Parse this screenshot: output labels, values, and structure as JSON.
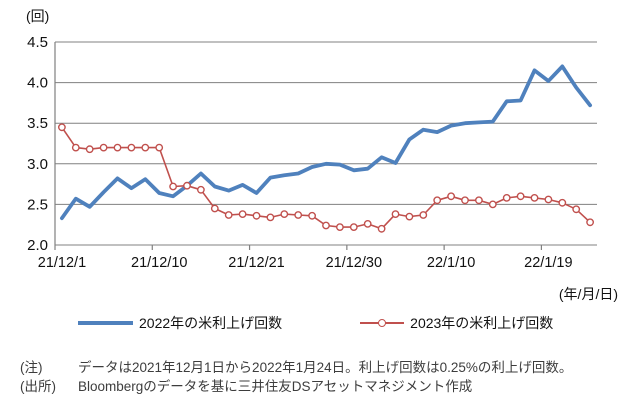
{
  "y_unit_label": "(回)",
  "x_unit_label": "(年/月/日)",
  "legend": {
    "series1_label": "2022年の米利上げ回数",
    "series2_label": "2023年の米利上げ回数"
  },
  "notes": {
    "note_label": "(注)",
    "note_text": "データは2021年12月1日から2022年1月24日。利上げ回数は0.25%の利上げ回数。",
    "source_label": "(出所)",
    "source_text": "Bloombergのデータを基に三井住友DSアセットマネジメント作成"
  },
  "colors": {
    "series1": "#4F81BD",
    "series2": "#C0504D",
    "gridline": "#808080",
    "axis_text": "#111111"
  },
  "chart_data": {
    "type": "line",
    "title": "",
    "ylabel": "(回)",
    "xlabel": "(年/月/日)",
    "ylim": [
      2.0,
      4.5
    ],
    "yticks": [
      4.5,
      4.0,
      3.5,
      3.0,
      2.5,
      2.0
    ],
    "grid": "horizontal",
    "legend_position": "bottom",
    "x": [
      "21/12/1",
      "21/12/2",
      "21/12/3",
      "21/12/6",
      "21/12/7",
      "21/12/8",
      "21/12/9",
      "21/12/10",
      "21/12/13",
      "21/12/14",
      "21/12/15",
      "21/12/16",
      "21/12/17",
      "21/12/20",
      "21/12/21",
      "21/12/22",
      "21/12/23",
      "21/12/24",
      "21/12/27",
      "21/12/28",
      "21/12/29",
      "21/12/30",
      "21/12/31",
      "22/1/3",
      "22/1/4",
      "22/1/5",
      "22/1/6",
      "22/1/7",
      "22/1/10",
      "22/1/11",
      "22/1/12",
      "22/1/13",
      "22/1/14",
      "22/1/17",
      "22/1/18",
      "22/1/19",
      "22/1/20",
      "22/1/21",
      "22/1/24"
    ],
    "x_tick_indices": [
      0,
      7,
      14,
      21,
      28,
      35
    ],
    "x_tick_labels": [
      "21/12/1",
      "21/12/10",
      "21/12/21",
      "21/12/30",
      "22/1/10",
      "22/1/19"
    ],
    "series": [
      {
        "name": "2022年の米利上げ回数",
        "color": "#4F81BD",
        "line_width": 3.8,
        "marker": "none",
        "values": [
          2.33,
          2.57,
          2.47,
          2.65,
          2.82,
          2.7,
          2.81,
          2.64,
          2.6,
          2.73,
          2.88,
          2.72,
          2.67,
          2.74,
          2.64,
          2.83,
          2.86,
          2.88,
          2.96,
          3.0,
          2.99,
          2.92,
          2.94,
          3.08,
          3.01,
          3.3,
          3.42,
          3.39,
          3.47,
          3.5,
          3.51,
          3.52,
          3.77,
          3.78,
          4.15,
          4.02,
          4.2,
          3.94,
          3.72
        ]
      },
      {
        "name": "2023年の米利上げ回数",
        "color": "#C0504D",
        "line_width": 1.6,
        "marker": "circle-open",
        "values": [
          3.45,
          3.2,
          3.18,
          3.2,
          3.2,
          3.2,
          3.2,
          3.2,
          2.72,
          2.73,
          2.68,
          2.45,
          2.37,
          2.38,
          2.36,
          2.34,
          2.38,
          2.37,
          2.36,
          2.24,
          2.22,
          2.22,
          2.26,
          2.2,
          2.38,
          2.35,
          2.37,
          2.55,
          2.6,
          2.55,
          2.55,
          2.5,
          2.58,
          2.6,
          2.58,
          2.56,
          2.52,
          2.44,
          2.28
        ]
      }
    ]
  }
}
